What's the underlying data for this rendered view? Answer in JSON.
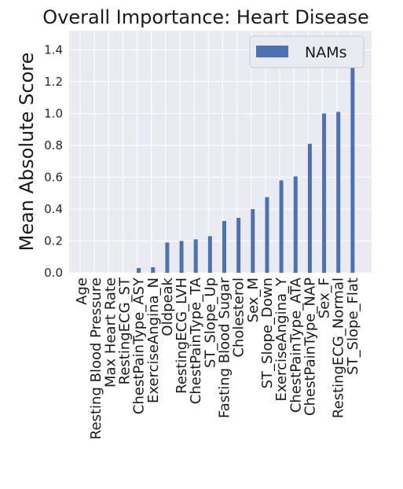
{
  "chart_data": {
    "type": "bar",
    "title": "Overall Importance: Heart Disease",
    "xlabel": "",
    "ylabel": "Mean Absolute Score",
    "ylim": [
      0,
      1.52
    ],
    "yticks": [
      0.0,
      0.2,
      0.4,
      0.6,
      0.8,
      1.0,
      1.2,
      1.4
    ],
    "ytick_labels": [
      "0.0",
      "0.2",
      "0.4",
      "0.6",
      "0.8",
      "1.0",
      "1.2",
      "1.4"
    ],
    "grid": true,
    "legend_position": "top-right",
    "categories": [
      "Age",
      "Resting Blood Pressure",
      "Max Heart Rate",
      "RestingECG_ST",
      "ChestPainType_ASY",
      "ExerciseAngina_N",
      "Oldpeak",
      "RestingECG_LVH",
      "ChestPainType_TA",
      "ST_Slope_Up",
      "Fasting Blood Sugar",
      "Cholesterol",
      "Sex_M",
      "ST_Slope_Down",
      "ExerciseAngina_Y",
      "ChestPainType_ATA",
      "ChestPainType_NAP",
      "Sex_F",
      "RestingECG_Normal",
      "ST_Slope_Flat"
    ],
    "series": [
      {
        "name": "NAMs",
        "color": "#4c72b0",
        "values": [
          0.0,
          0.0,
          0.0,
          0.0,
          0.03,
          0.035,
          0.19,
          0.2,
          0.21,
          0.23,
          0.325,
          0.345,
          0.4,
          0.475,
          0.58,
          0.605,
          0.81,
          1.0,
          1.01,
          1.38
        ]
      }
    ],
    "colors": {
      "plot_background": "#eaeaf2",
      "grid": "#ffffff"
    }
  }
}
